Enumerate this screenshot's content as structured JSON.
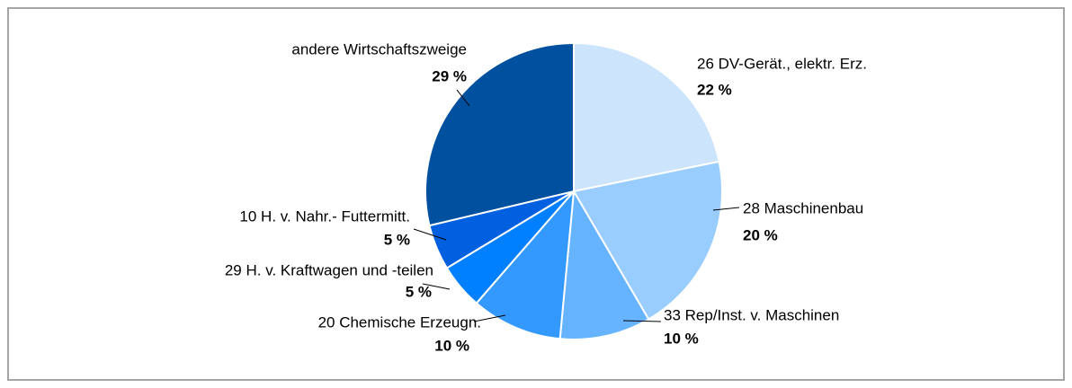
{
  "chart_data": {
    "type": "pie",
    "categories": [
      "26  DV-Gerät., elektr. Erz.",
      "28  Maschinenbau",
      "33  Rep/Inst. v. Maschinen",
      "20  Chemische Erzeugn.",
      "29  H. v. Kraftwagen und -teilen",
      "10  H. v. Nahr.- Futtermitt.",
      "andere Wirtschaftszweige"
    ],
    "values": [
      22,
      20,
      10,
      10,
      5,
      5,
      29
    ],
    "value_labels": [
      "22 %",
      "20 %",
      "10 %",
      "10 %",
      "5 %",
      "5 %",
      "29 %"
    ],
    "colors": [
      "#cce4fc",
      "#99ccff",
      "#66b3ff",
      "#3399ff",
      "#0080ff",
      "#0060e0",
      "#0050a0"
    ]
  }
}
